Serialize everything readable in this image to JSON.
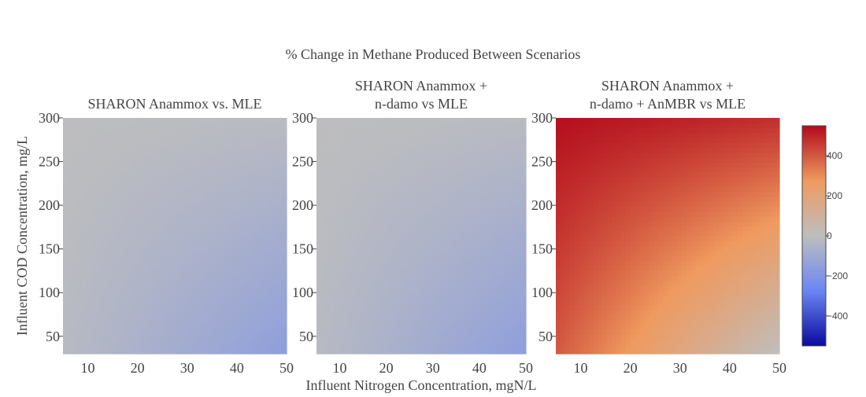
{
  "chart_data": {
    "type": "heatmap",
    "title": "% Change in Methane Produced Between Scenarios",
    "xlabel": "Influent Nitrogen Concentration, mgN/L",
    "ylabel": "Influent COD Concentration, mg/L",
    "x_range": [
      5,
      50
    ],
    "y_range": [
      30,
      300
    ],
    "x_ticks": [
      10,
      20,
      30,
      40,
      50
    ],
    "y_ticks": [
      50,
      100,
      150,
      200,
      250,
      300
    ],
    "colorscale": [
      [
        0.0,
        "#0a0a9e"
      ],
      [
        0.25,
        "#6a86f4"
      ],
      [
        0.5,
        "#bebebe"
      ],
      [
        0.75,
        "#ef9a5f"
      ],
      [
        1.0,
        "#b20a1c"
      ]
    ],
    "colorbar": {
      "range": [
        -550,
        550
      ],
      "ticks": [
        400,
        200,
        0,
        -200,
        -400
      ],
      "tick_labels": [
        "400",
        "200",
        "0",
        "−200",
        "−400"
      ]
    },
    "panels": [
      {
        "title_lines": [
          "SHARON Anammox vs. MLE"
        ],
        "x_tick_labels": [
          "10",
          "20",
          "30",
          "40",
          "50"
        ],
        "corner_values": {
          "x5_y30": -20,
          "x50_y30": -155,
          "x5_y300": -2,
          "x50_y300": -15
        }
      },
      {
        "title_lines": [
          "SHARON Anammox +",
          "n-damo vs MLE"
        ],
        "x_tick_labels": [
          "10",
          "20",
          "30",
          "40",
          "50"
        ],
        "corner_values": {
          "x5_y30": -20,
          "x50_y30": -155,
          "x5_y300": -2,
          "x50_y300": -15
        }
      },
      {
        "title_lines": [
          "SHARON Anammox +",
          "n-damo + AnMBR vs MLE"
        ],
        "x_tick_labels": [
          "10",
          "20",
          "30",
          "40",
          "50"
        ],
        "corner_values": {
          "x5_y30": 400,
          "x50_y30": 0,
          "x5_y300": 540,
          "x50_y300": 480
        }
      }
    ]
  }
}
